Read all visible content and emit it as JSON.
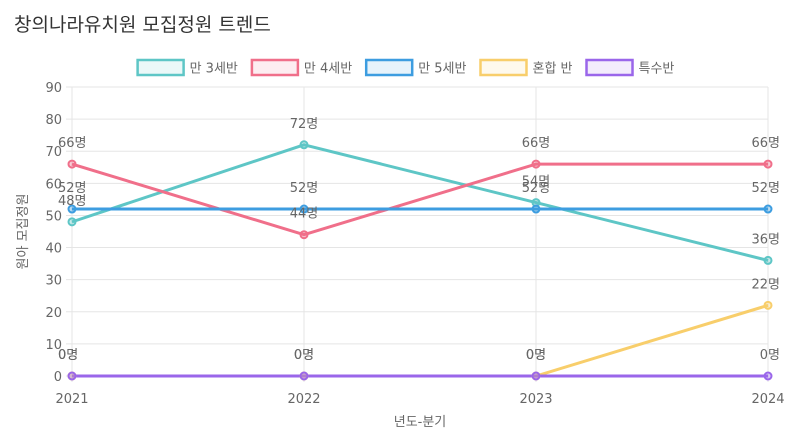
{
  "chart_data": {
    "type": "line",
    "title": "창의나라유치원 모집정원 트렌드",
    "xlabel": "년도-분기",
    "ylabel": "원아 모집정원",
    "categories": [
      "2021",
      "2022",
      "2023",
      "2024"
    ],
    "ylim": [
      0,
      90
    ],
    "yticks": [
      0,
      10,
      20,
      30,
      40,
      50,
      60,
      70,
      80,
      90
    ],
    "label_suffix": "명",
    "grid": true,
    "legend_position": "top",
    "series": [
      {
        "name": "만 3세반",
        "values": [
          48,
          72,
          54,
          36
        ],
        "color": "#5ec6c6"
      },
      {
        "name": "만 4세반",
        "values": [
          66,
          44,
          66,
          66
        ],
        "color": "#f06f8a"
      },
      {
        "name": "만 5세반",
        "values": [
          52,
          52,
          52,
          52
        ],
        "color": "#3d9de0"
      },
      {
        "name": "혼합 반",
        "values": [
          0,
          0,
          0,
          22
        ],
        "color": "#f8ce6b"
      },
      {
        "name": "특수반",
        "values": [
          0,
          0,
          0,
          0
        ],
        "color": "#9a66ea"
      }
    ]
  }
}
